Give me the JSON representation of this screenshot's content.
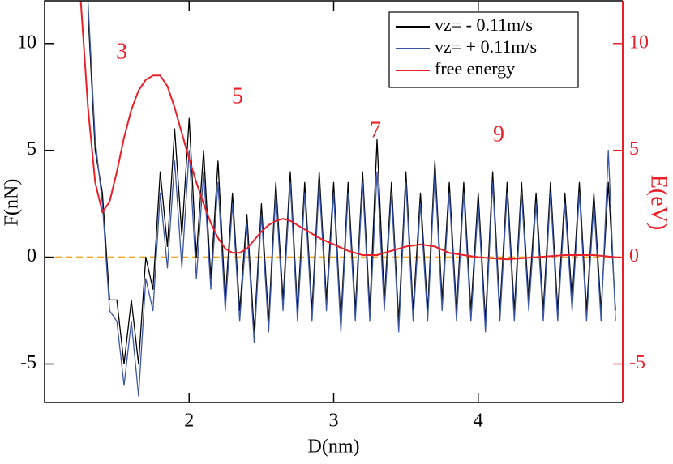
{
  "chart_data": {
    "type": "line",
    "xlabel": "D(nm)",
    "ylabel": "F(nN)",
    "y2label": "E(eV)",
    "xlim": [
      1,
      5
    ],
    "ylim": [
      -6.8,
      12
    ],
    "y2lim": [
      -6.8,
      12
    ],
    "xticks": [
      2,
      3,
      4
    ],
    "yticks": [
      -5,
      0,
      5,
      10
    ],
    "y2ticks": [
      -5,
      0,
      5,
      10
    ],
    "legend": "upper right",
    "reference_line": {
      "value": 0,
      "color": "#f5a623",
      "dashed": true
    },
    "annotations": [
      "3",
      "5",
      "7",
      "9"
    ],
    "annotation_color": "#e8202a",
    "series": [
      {
        "name": "vz= - 0.11m/s",
        "color": "#000000",
        "x": [
          1.3,
          1.35,
          1.4,
          1.45,
          1.5,
          1.55,
          1.6,
          1.65,
          1.7,
          1.75,
          1.8,
          1.85,
          1.9,
          1.95,
          2.0,
          2.05,
          2.1,
          2.15,
          2.2,
          2.25,
          2.3,
          2.35,
          2.4,
          2.45,
          2.5,
          2.55,
          2.6,
          2.65,
          2.7,
          2.75,
          2.8,
          2.85,
          2.9,
          2.95,
          3.0,
          3.05,
          3.1,
          3.15,
          3.2,
          3.25,
          3.3,
          3.35,
          3.4,
          3.45,
          3.5,
          3.55,
          3.6,
          3.65,
          3.7,
          3.75,
          3.8,
          3.85,
          3.9,
          3.95,
          4.0,
          4.05,
          4.1,
          4.15,
          4.2,
          4.25,
          4.3,
          4.35,
          4.4,
          4.45,
          4.5,
          4.55,
          4.6,
          4.65,
          4.7,
          4.75,
          4.8,
          4.85,
          4.9,
          4.95
        ],
        "values": [
          11.5,
          5,
          3,
          -2,
          -2,
          -5,
          -2,
          -5,
          0,
          -1.5,
          4,
          0.5,
          6,
          1,
          6.5,
          0,
          5,
          -1,
          4.5,
          -2,
          3,
          -2.5,
          2,
          -3.5,
          2.5,
          -3,
          3.5,
          -2,
          4,
          -2.5,
          3.5,
          -2.5,
          4,
          -2,
          3.5,
          -3,
          3.5,
          -2.5,
          4,
          -2.5,
          5.5,
          -2,
          3.5,
          -3,
          4,
          -2.5,
          3,
          -2.5,
          4.5,
          -2,
          3.5,
          -2.5,
          3.5,
          -2.5,
          3,
          -3,
          4,
          -2.5,
          3.5,
          -2.5,
          3.5,
          -2,
          3,
          -2.5,
          3.5,
          -2.5,
          3,
          -2,
          3.5,
          -2.5,
          3,
          -2.5,
          3.5,
          -2.5
        ]
      },
      {
        "name": "vz= + 0.11m/s",
        "color": "#3b56a6",
        "x": [
          1.3,
          1.35,
          1.4,
          1.45,
          1.5,
          1.55,
          1.6,
          1.65,
          1.7,
          1.75,
          1.8,
          1.85,
          1.9,
          1.95,
          2.0,
          2.05,
          2.1,
          2.15,
          2.2,
          2.25,
          2.3,
          2.35,
          2.4,
          2.45,
          2.5,
          2.55,
          2.6,
          2.65,
          2.7,
          2.75,
          2.8,
          2.85,
          2.9,
          2.95,
          3.0,
          3.05,
          3.1,
          3.15,
          3.2,
          3.25,
          3.3,
          3.35,
          3.4,
          3.45,
          3.5,
          3.55,
          3.6,
          3.65,
          3.7,
          3.75,
          3.8,
          3.85,
          3.9,
          3.95,
          4.0,
          4.05,
          4.1,
          4.15,
          4.2,
          4.25,
          4.3,
          4.35,
          4.4,
          4.45,
          4.5,
          4.55,
          4.6,
          4.65,
          4.7,
          4.75,
          4.8,
          4.85,
          4.9,
          4.95
        ],
        "values": [
          12,
          5.5,
          2.5,
          -2.5,
          -3,
          -6,
          -3,
          -6.5,
          -1,
          -2.5,
          3,
          -0.5,
          4.5,
          -0.5,
          5,
          -1,
          4,
          -1.5,
          3.5,
          -2.5,
          2.5,
          -3,
          1.5,
          -4,
          2,
          -3.5,
          3,
          -2.5,
          3.5,
          -3,
          3,
          -3,
          3.5,
          -2.5,
          3,
          -3.5,
          3,
          -3,
          3.5,
          -3,
          4,
          -2.5,
          3,
          -3.5,
          3.5,
          -3,
          2.5,
          -3,
          4,
          -2.5,
          3,
          -3,
          3,
          -3,
          2.5,
          -3.5,
          3.5,
          -3,
          3,
          -3,
          3,
          -2.5,
          2.5,
          -3,
          3,
          -3,
          2.5,
          -2.5,
          3,
          -3,
          2.5,
          -3,
          5,
          -3
        ]
      },
      {
        "name": "free energy",
        "color": "#e8202a",
        "axis": "y2",
        "x": [
          1.25,
          1.3,
          1.35,
          1.4,
          1.45,
          1.5,
          1.55,
          1.6,
          1.65,
          1.7,
          1.75,
          1.8,
          1.85,
          1.9,
          1.95,
          2.0,
          2.05,
          2.1,
          2.15,
          2.2,
          2.25,
          2.3,
          2.35,
          2.4,
          2.45,
          2.5,
          2.55,
          2.6,
          2.65,
          2.7,
          2.8,
          2.9,
          3.0,
          3.1,
          3.2,
          3.3,
          3.4,
          3.5,
          3.6,
          3.7,
          3.8,
          3.9,
          4.0,
          4.2,
          4.4,
          4.6,
          4.8,
          4.95
        ],
        "values": [
          12,
          7,
          3.5,
          2.1,
          2.6,
          4,
          5.6,
          6.9,
          7.8,
          8.3,
          8.5,
          8.5,
          8,
          7,
          5.8,
          4.6,
          3.5,
          2.5,
          1.6,
          0.9,
          0.4,
          0.2,
          0.2,
          0.4,
          0.8,
          1.2,
          1.5,
          1.7,
          1.8,
          1.7,
          1.3,
          0.9,
          0.6,
          0.3,
          0.1,
          0.1,
          0.3,
          0.5,
          0.6,
          0.5,
          0.2,
          0.1,
          0,
          -0.1,
          0,
          0.1,
          0.1,
          0
        ]
      }
    ]
  }
}
